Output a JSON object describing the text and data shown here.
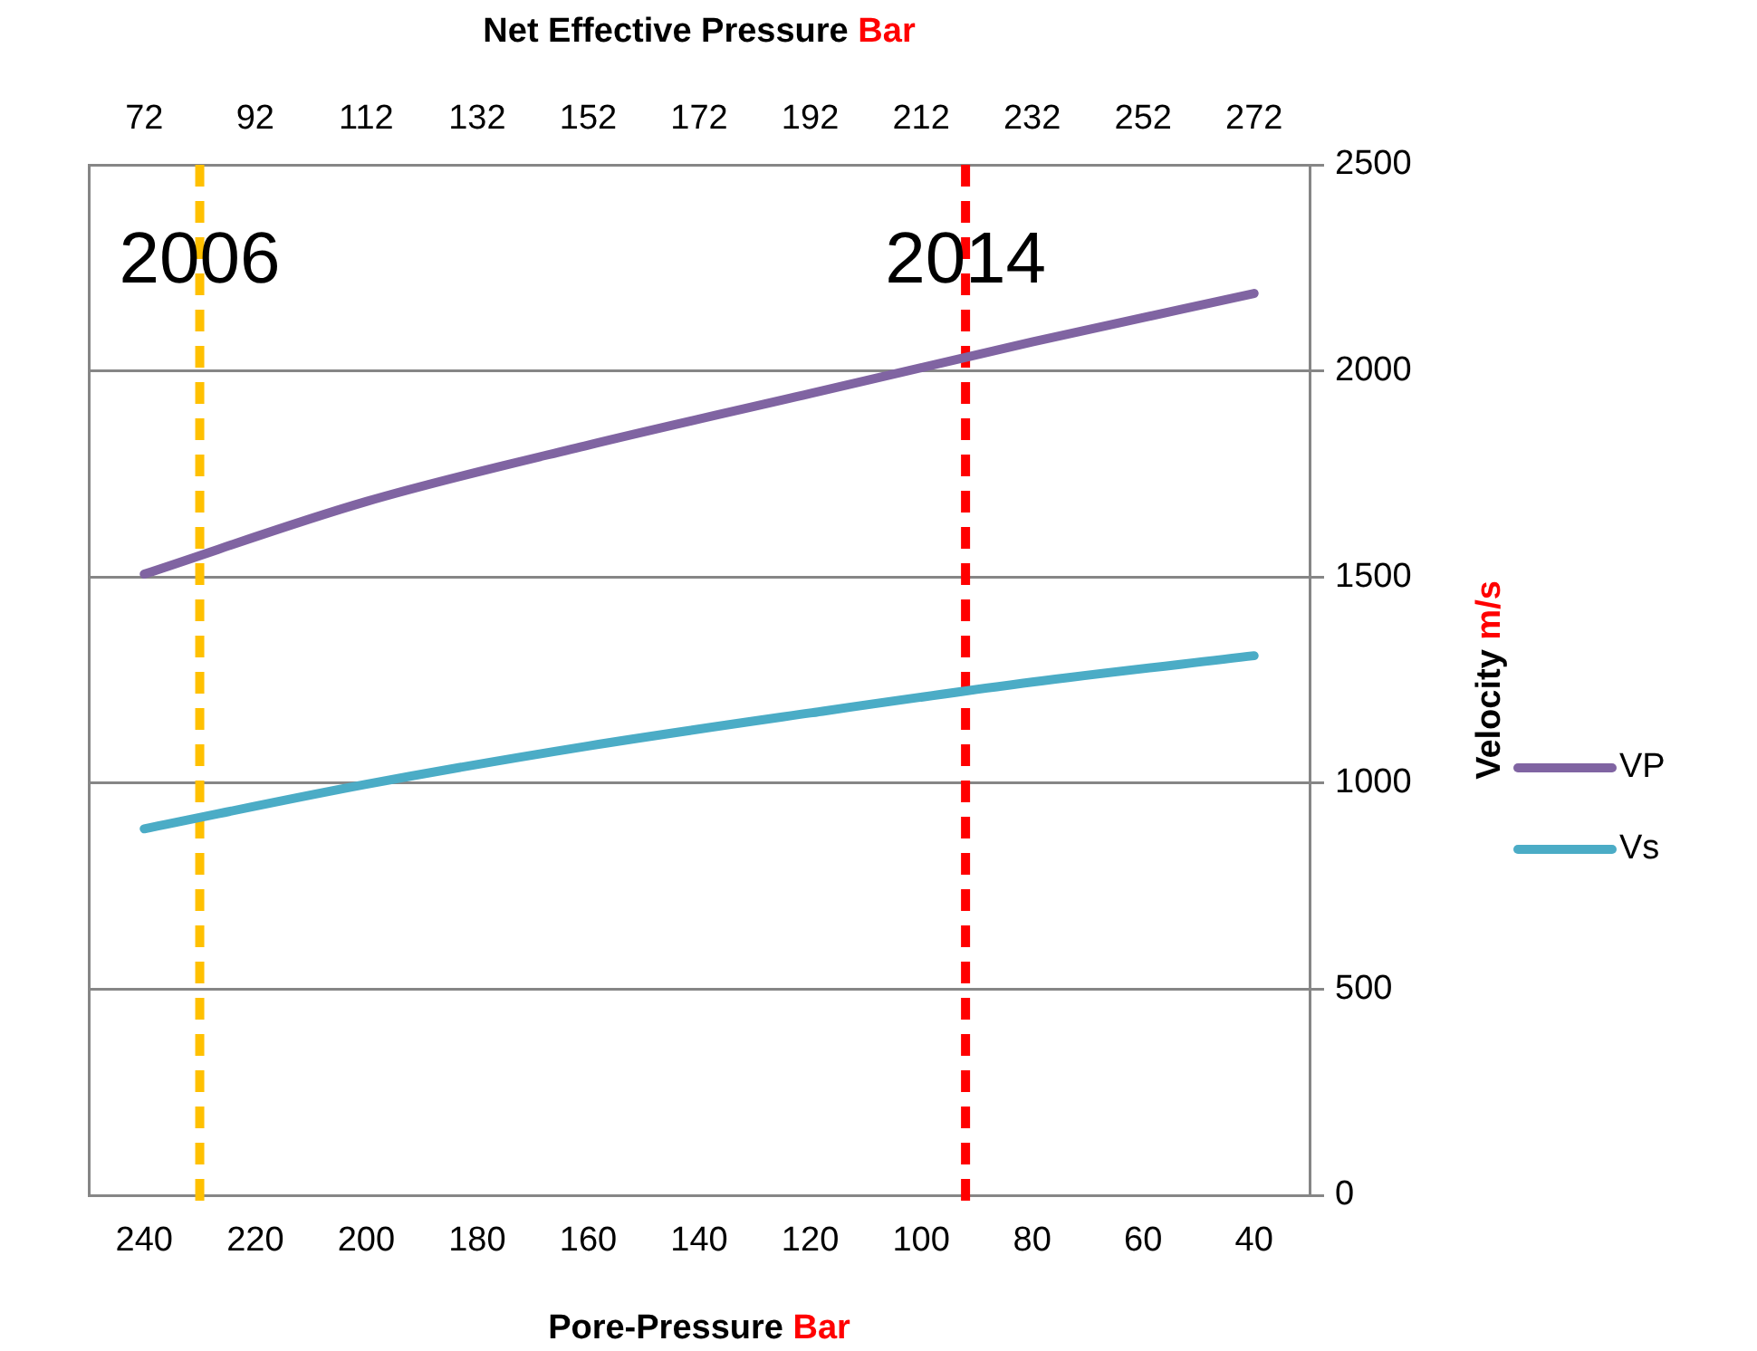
{
  "chart_data": {
    "type": "line",
    "xlabel": "Pore-Pressure Bar",
    "x2label": "Net Effective Pressure Bar",
    "y2label": "Velocity m/s",
    "x": [
      240,
      200,
      160,
      120,
      80,
      40
    ],
    "series": [
      {
        "name": "VP",
        "color": "#8064a2",
        "axis": "y2",
        "values": [
          1507,
          1683,
          1820,
          1945,
          2070,
          2188
        ]
      },
      {
        "name": "Vs",
        "color": "#4bacc6",
        "axis": "y2",
        "values": [
          889,
          997,
          1090,
          1170,
          1245,
          1309
        ]
      }
    ],
    "xlim": [
      250,
      30
    ],
    "xticks": [
      240,
      220,
      200,
      180,
      160,
      140,
      120,
      100,
      80,
      60,
      40
    ],
    "x2lim": [
      62,
      282
    ],
    "x2ticks": [
      72,
      92,
      112,
      132,
      152,
      172,
      192,
      212,
      232,
      252,
      272
    ],
    "y2lim": [
      0,
      2500
    ],
    "y2ticks": [
      0,
      500,
      1000,
      1500,
      2000,
      2500
    ],
    "tick_labels": [
      "x",
      "x2",
      "y2"
    ],
    "ref_lines": [
      {
        "axis": "x",
        "value": 230,
        "color": "#ffc000",
        "line_style": "dashed"
      },
      {
        "axis": "x",
        "value": 92,
        "color": "#ff0000",
        "line_style": "dashed"
      }
    ],
    "annotations": [
      "2006",
      "2014"
    ],
    "grid": "y",
    "legend": "right",
    "marker": "none",
    "line_style": "solid"
  }
}
